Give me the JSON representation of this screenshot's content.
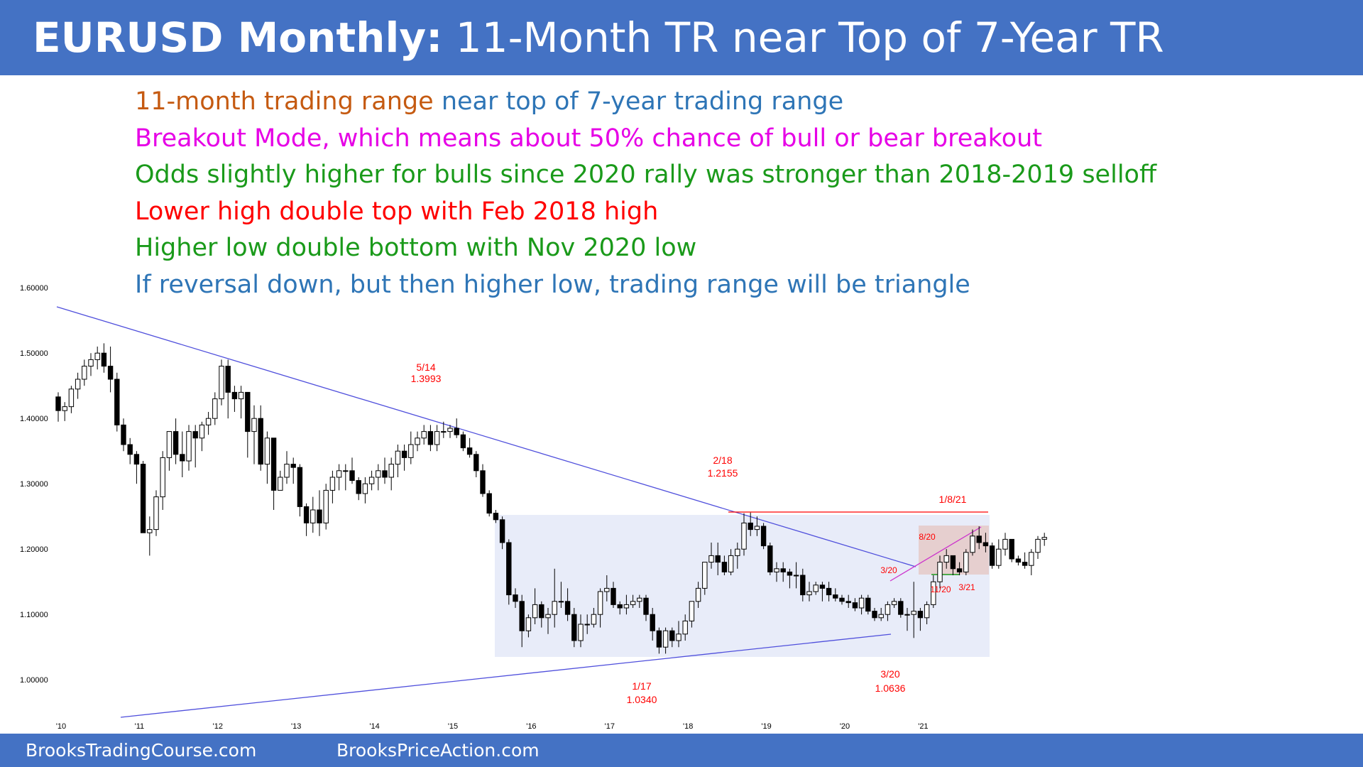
{
  "title": {
    "bold": "EURUSD Monthly:",
    "rest": "11-Month TR near Top of 7-Year TR",
    "bar_color": "#4472c4"
  },
  "bullets": [
    {
      "parts": [
        {
          "text": "11-month trading range",
          "color": "#c55a11"
        },
        {
          "text": " near top of 7-year trading range",
          "color": "#2e75b6"
        }
      ]
    },
    {
      "parts": [
        {
          "text": "Breakout Mode, which means about 50% chance of bull or bear breakout",
          "color": "#e600e6"
        }
      ]
    },
    {
      "parts": [
        {
          "text": "Odds slightly higher for bulls since 2020 rally was stronger than 2018-2019 selloff",
          "color": "#1a9a1a"
        }
      ]
    },
    {
      "parts": [
        {
          "text": "Lower high double top with Feb 2018 high",
          "color": "#ff0000"
        }
      ]
    },
    {
      "parts": [
        {
          "text": "Higher low double bottom with Nov 2020 low",
          "color": "#1a9a1a"
        }
      ]
    },
    {
      "parts": [
        {
          "text": "If reversal down, but then higher low, trading range will be triangle",
          "color": "#2e75b6"
        }
      ]
    }
  ],
  "chart_data": {
    "type": "candlestick",
    "timeframe": "monthly",
    "ylim": [
      0.935,
      1.615
    ],
    "y_ticks": [
      "1.60000",
      "1.50000",
      "1.40000",
      "1.30000",
      "1.20000",
      "1.10000",
      "1.00000"
    ],
    "x_ticks": [
      "'10",
      "'11",
      "'12",
      "'13",
      "'14",
      "'15",
      "'16",
      "'17",
      "'18",
      "'19",
      "'20",
      "'21"
    ],
    "colors": {
      "up": "#ffffff",
      "down": "#000000",
      "trendline": "#4f4fdc",
      "resistance": "#ff0000",
      "triangle_line": "#cc33cc",
      "range_box": "#e8ecf9",
      "tr_box": "#e6cfcf",
      "support": "#1a9a1a",
      "annotation": "#ff0000"
    },
    "series_ohlc": [
      [
        1.433,
        1.44,
        1.395,
        1.412
      ],
      [
        1.412,
        1.425,
        1.396,
        1.418
      ],
      [
        1.418,
        1.45,
        1.408,
        1.445
      ],
      [
        1.445,
        1.47,
        1.43,
        1.46
      ],
      [
        1.46,
        1.49,
        1.45,
        1.48
      ],
      [
        1.48,
        1.5,
        1.465,
        1.49
      ],
      [
        1.49,
        1.51,
        1.475,
        1.5
      ],
      [
        1.5,
        1.515,
        1.47,
        1.48
      ],
      [
        1.48,
        1.51,
        1.44,
        1.46
      ],
      [
        1.46,
        1.47,
        1.38,
        1.39
      ],
      [
        1.39,
        1.4,
        1.35,
        1.36
      ],
      [
        1.36,
        1.37,
        1.33,
        1.345
      ],
      [
        1.345,
        1.35,
        1.3,
        1.33
      ],
      [
        1.33,
        1.335,
        1.23,
        1.225
      ],
      [
        1.225,
        1.25,
        1.19,
        1.23
      ],
      [
        1.23,
        1.29,
        1.22,
        1.28
      ],
      [
        1.28,
        1.35,
        1.26,
        1.34
      ],
      [
        1.34,
        1.38,
        1.32,
        1.38
      ],
      [
        1.38,
        1.4,
        1.33,
        1.345
      ],
      [
        1.345,
        1.38,
        1.31,
        1.335
      ],
      [
        1.335,
        1.39,
        1.32,
        1.38
      ],
      [
        1.38,
        1.39,
        1.325,
        1.37
      ],
      [
        1.37,
        1.395,
        1.35,
        1.39
      ],
      [
        1.39,
        1.41,
        1.375,
        1.4
      ],
      [
        1.4,
        1.44,
        1.39,
        1.43
      ],
      [
        1.43,
        1.49,
        1.42,
        1.48
      ],
      [
        1.48,
        1.49,
        1.4,
        1.44
      ],
      [
        1.44,
        1.45,
        1.41,
        1.43
      ],
      [
        1.43,
        1.45,
        1.4,
        1.44
      ],
      [
        1.44,
        1.44,
        1.34,
        1.38
      ],
      [
        1.38,
        1.42,
        1.33,
        1.4
      ],
      [
        1.4,
        1.42,
        1.32,
        1.33
      ],
      [
        1.33,
        1.38,
        1.3,
        1.37
      ],
      [
        1.37,
        1.37,
        1.26,
        1.29
      ],
      [
        1.29,
        1.32,
        1.29,
        1.31
      ],
      [
        1.31,
        1.35,
        1.3,
        1.33
      ],
      [
        1.33,
        1.34,
        1.3,
        1.325
      ],
      [
        1.325,
        1.33,
        1.25,
        1.265
      ],
      [
        1.265,
        1.27,
        1.22,
        1.24
      ],
      [
        1.24,
        1.28,
        1.225,
        1.26
      ],
      [
        1.26,
        1.29,
        1.22,
        1.24
      ],
      [
        1.24,
        1.3,
        1.23,
        1.29
      ],
      [
        1.29,
        1.32,
        1.27,
        1.31
      ],
      [
        1.31,
        1.33,
        1.29,
        1.32
      ],
      [
        1.32,
        1.33,
        1.29,
        1.32
      ],
      [
        1.32,
        1.34,
        1.3,
        1.305
      ],
      [
        1.305,
        1.31,
        1.275,
        1.285
      ],
      [
        1.285,
        1.31,
        1.27,
        1.3
      ],
      [
        1.3,
        1.32,
        1.29,
        1.31
      ],
      [
        1.31,
        1.33,
        1.29,
        1.32
      ],
      [
        1.32,
        1.34,
        1.3,
        1.31
      ],
      [
        1.31,
        1.34,
        1.29,
        1.33
      ],
      [
        1.33,
        1.36,
        1.31,
        1.35
      ],
      [
        1.35,
        1.36,
        1.32,
        1.34
      ],
      [
        1.34,
        1.38,
        1.33,
        1.36
      ],
      [
        1.36,
        1.38,
        1.35,
        1.37
      ],
      [
        1.37,
        1.39,
        1.36,
        1.38
      ],
      [
        1.38,
        1.39,
        1.35,
        1.36
      ],
      [
        1.36,
        1.39,
        1.35,
        1.38
      ],
      [
        1.38,
        1.395,
        1.37,
        1.38
      ],
      [
        1.38,
        1.39,
        1.37,
        1.385
      ],
      [
        1.385,
        1.4,
        1.37,
        1.375
      ],
      [
        1.375,
        1.38,
        1.35,
        1.355
      ],
      [
        1.355,
        1.37,
        1.34,
        1.345
      ],
      [
        1.345,
        1.35,
        1.31,
        1.32
      ],
      [
        1.32,
        1.33,
        1.28,
        1.285
      ],
      [
        1.285,
        1.29,
        1.25,
        1.255
      ],
      [
        1.255,
        1.26,
        1.24,
        1.245
      ],
      [
        1.245,
        1.25,
        1.2,
        1.21
      ],
      [
        1.21,
        1.215,
        1.115,
        1.13
      ],
      [
        1.13,
        1.14,
        1.11,
        1.12
      ],
      [
        1.12,
        1.13,
        1.05,
        1.075
      ],
      [
        1.075,
        1.1,
        1.065,
        1.095
      ],
      [
        1.095,
        1.14,
        1.085,
        1.115
      ],
      [
        1.115,
        1.12,
        1.08,
        1.095
      ],
      [
        1.095,
        1.11,
        1.07,
        1.1
      ],
      [
        1.1,
        1.17,
        1.08,
        1.12
      ],
      [
        1.12,
        1.15,
        1.11,
        1.12
      ],
      [
        1.12,
        1.14,
        1.09,
        1.1
      ],
      [
        1.1,
        1.11,
        1.05,
        1.06
      ],
      [
        1.06,
        1.1,
        1.05,
        1.085
      ],
      [
        1.085,
        1.1,
        1.07,
        1.085
      ],
      [
        1.085,
        1.11,
        1.08,
        1.1
      ],
      [
        1.1,
        1.14,
        1.08,
        1.135
      ],
      [
        1.135,
        1.16,
        1.12,
        1.14
      ],
      [
        1.14,
        1.15,
        1.11,
        1.115
      ],
      [
        1.115,
        1.12,
        1.1,
        1.11
      ],
      [
        1.11,
        1.13,
        1.1,
        1.115
      ],
      [
        1.115,
        1.13,
        1.11,
        1.12
      ],
      [
        1.12,
        1.13,
        1.11,
        1.125
      ],
      [
        1.125,
        1.13,
        1.09,
        1.1
      ],
      [
        1.1,
        1.11,
        1.06,
        1.075
      ],
      [
        1.075,
        1.08,
        1.04,
        1.05
      ],
      [
        1.05,
        1.08,
        1.04,
        1.075
      ],
      [
        1.075,
        1.08,
        1.05,
        1.06
      ],
      [
        1.06,
        1.09,
        1.05,
        1.07
      ],
      [
        1.07,
        1.1,
        1.06,
        1.09
      ],
      [
        1.09,
        1.12,
        1.08,
        1.12
      ],
      [
        1.12,
        1.15,
        1.11,
        1.14
      ],
      [
        1.14,
        1.18,
        1.13,
        1.18
      ],
      [
        1.18,
        1.21,
        1.17,
        1.19
      ],
      [
        1.19,
        1.21,
        1.16,
        1.18
      ],
      [
        1.18,
        1.19,
        1.16,
        1.165
      ],
      [
        1.165,
        1.2,
        1.16,
        1.19
      ],
      [
        1.19,
        1.21,
        1.17,
        1.2
      ],
      [
        1.2,
        1.255,
        1.19,
        1.24
      ],
      [
        1.24,
        1.256,
        1.22,
        1.23
      ],
      [
        1.23,
        1.25,
        1.22,
        1.235
      ],
      [
        1.235,
        1.24,
        1.2,
        1.205
      ],
      [
        1.205,
        1.21,
        1.16,
        1.165
      ],
      [
        1.165,
        1.18,
        1.15,
        1.17
      ],
      [
        1.17,
        1.18,
        1.15,
        1.165
      ],
      [
        1.165,
        1.17,
        1.14,
        1.16
      ],
      [
        1.16,
        1.18,
        1.14,
        1.16
      ],
      [
        1.16,
        1.17,
        1.12,
        1.13
      ],
      [
        1.13,
        1.15,
        1.12,
        1.135
      ],
      [
        1.135,
        1.15,
        1.13,
        1.145
      ],
      [
        1.145,
        1.15,
        1.12,
        1.14
      ],
      [
        1.14,
        1.15,
        1.12,
        1.13
      ],
      [
        1.13,
        1.14,
        1.12,
        1.125
      ],
      [
        1.125,
        1.13,
        1.115,
        1.12
      ],
      [
        1.12,
        1.13,
        1.11,
        1.118
      ],
      [
        1.118,
        1.125,
        1.105,
        1.11
      ],
      [
        1.11,
        1.13,
        1.1,
        1.125
      ],
      [
        1.125,
        1.13,
        1.1,
        1.105
      ],
      [
        1.105,
        1.11,
        1.09,
        1.095
      ],
      [
        1.095,
        1.11,
        1.09,
        1.1
      ],
      [
        1.1,
        1.12,
        1.09,
        1.115
      ],
      [
        1.115,
        1.125,
        1.11,
        1.12
      ],
      [
        1.12,
        1.125,
        1.095,
        1.1
      ],
      [
        1.1,
        1.11,
        1.075,
        1.1
      ],
      [
        1.1,
        1.15,
        1.064,
        1.105
      ],
      [
        1.105,
        1.11,
        1.075,
        1.095
      ],
      [
        1.095,
        1.12,
        1.085,
        1.115
      ],
      [
        1.115,
        1.16,
        1.11,
        1.15
      ],
      [
        1.15,
        1.19,
        1.14,
        1.18
      ],
      [
        1.18,
        1.2,
        1.17,
        1.19
      ],
      [
        1.19,
        1.19,
        1.16,
        1.17
      ],
      [
        1.17,
        1.18,
        1.16,
        1.165
      ],
      [
        1.165,
        1.2,
        1.16,
        1.195
      ],
      [
        1.195,
        1.23,
        1.19,
        1.22
      ],
      [
        1.22,
        1.235,
        1.2,
        1.21
      ],
      [
        1.21,
        1.225,
        1.195,
        1.205
      ],
      [
        1.205,
        1.21,
        1.17,
        1.175
      ],
      [
        1.175,
        1.215,
        1.17,
        1.2
      ],
      [
        1.2,
        1.225,
        1.19,
        1.215
      ],
      [
        1.215,
        1.215,
        1.18,
        1.185
      ],
      [
        1.185,
        1.19,
        1.175,
        1.18
      ],
      [
        1.18,
        1.195,
        1.17,
        1.175
      ],
      [
        1.175,
        1.2,
        1.16,
        1.195
      ],
      [
        1.195,
        1.22,
        1.185,
        1.215
      ],
      [
        1.215,
        1.225,
        1.205,
        1.218
      ]
    ],
    "annotations": [
      {
        "date": "5/14",
        "value": "1.3993"
      },
      {
        "date": "2/18",
        "value": "1.2155"
      },
      {
        "date": "1/8/21",
        "value": ""
      },
      {
        "date": "8/20",
        "value": ""
      },
      {
        "date": "3/20",
        "value": ""
      },
      {
        "date": "11/20",
        "value": ""
      },
      {
        "date": "3/21",
        "value": ""
      },
      {
        "date": "1/17",
        "value": "1.0340"
      },
      {
        "date": "3/20",
        "value": "1.0636"
      }
    ]
  },
  "footer": {
    "left": "BrooksTradingCourse.com",
    "right": "BrooksPriceAction.com"
  }
}
